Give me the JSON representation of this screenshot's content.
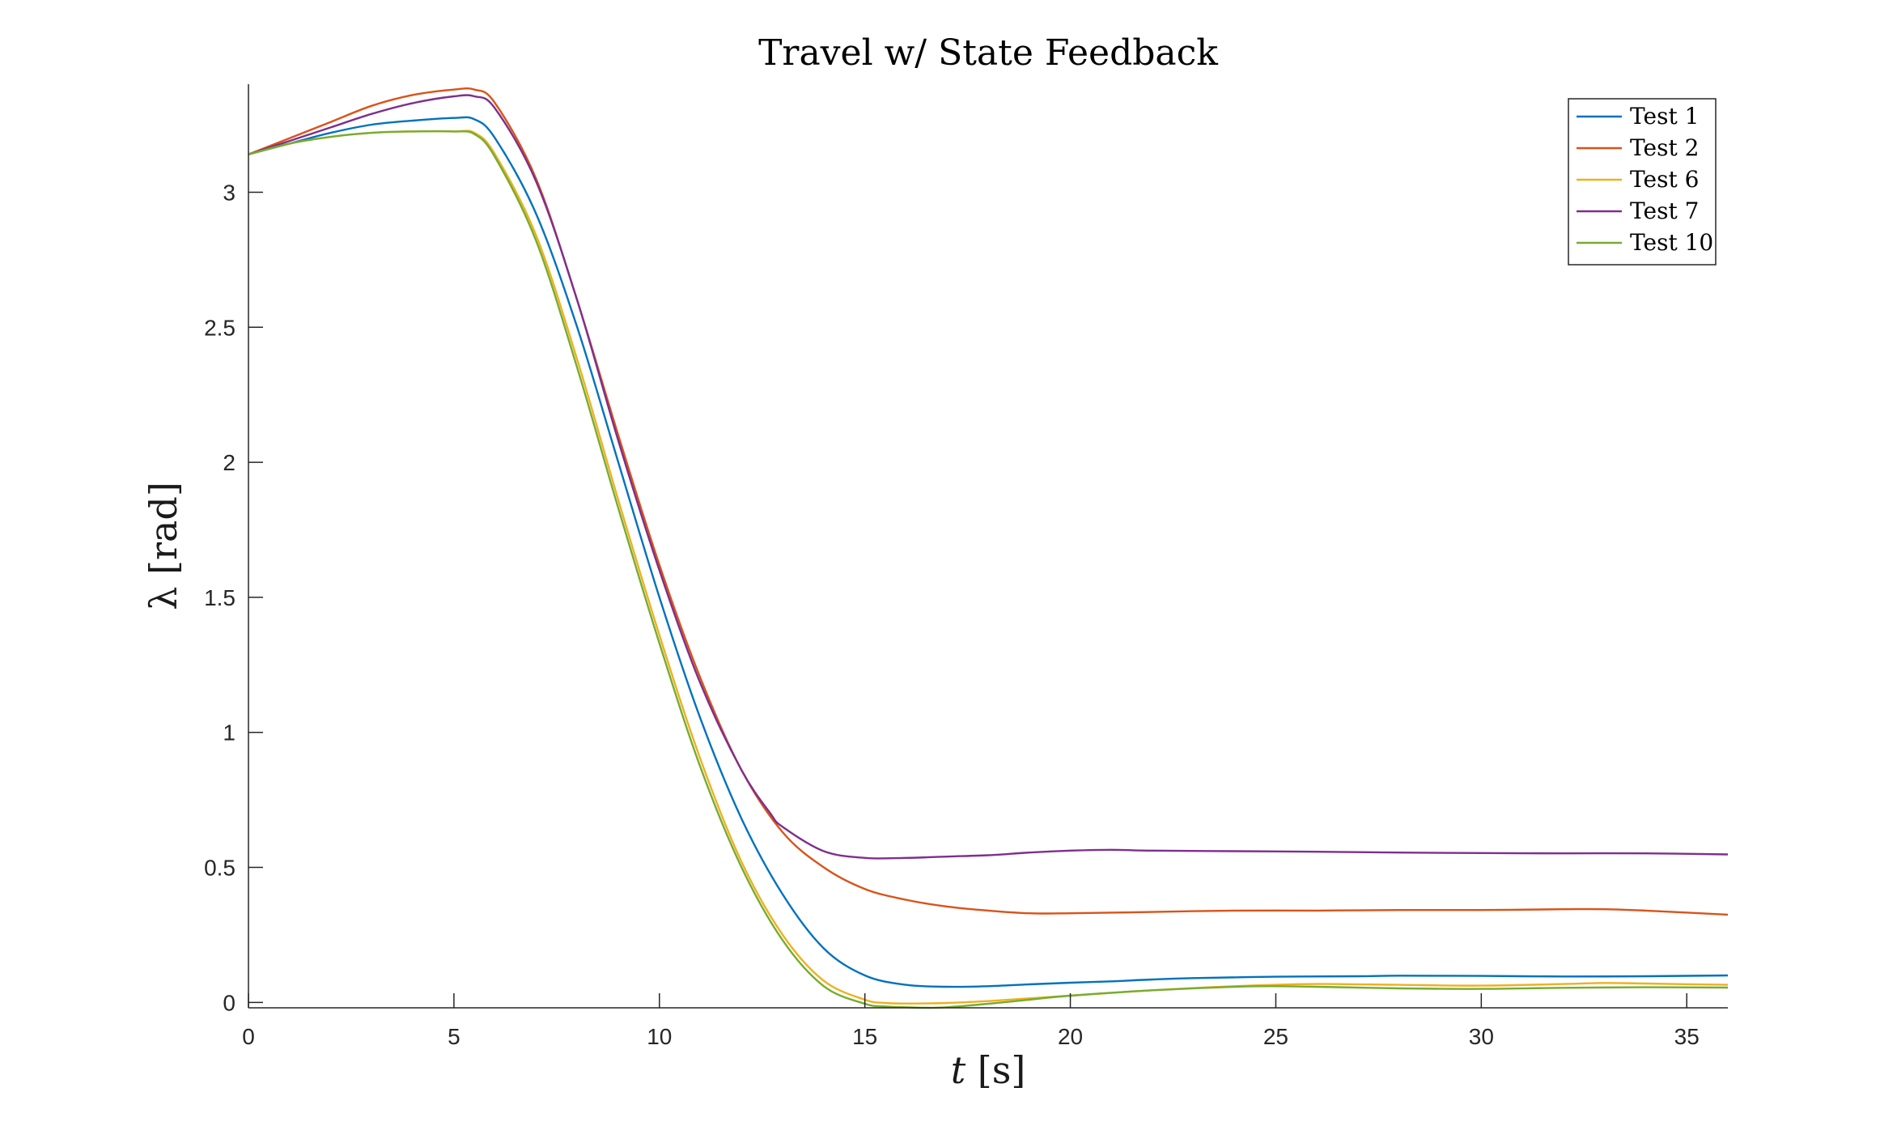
{
  "chart_data": {
    "type": "line",
    "title": "Travel w/ State Feedback",
    "xlabel": "t [s]",
    "ylabel": "λ [rad]",
    "xlim": [
      0,
      36
    ],
    "ylim": [
      -0.02,
      3.4
    ],
    "xticks": [
      0,
      5,
      10,
      15,
      20,
      25,
      30,
      35
    ],
    "yticks": [
      0,
      0.5,
      1,
      1.5,
      2,
      2.5,
      3
    ],
    "grid": false,
    "legend_position": "top-right",
    "series": [
      {
        "name": "Test 1",
        "color": "#0072BD",
        "x": [
          0,
          1,
          2,
          3,
          4,
          5,
          5.5,
          6,
          7,
          8,
          9,
          10,
          11,
          12,
          13,
          14,
          15,
          16,
          17,
          18,
          19,
          20,
          21,
          22,
          23,
          25,
          27,
          28,
          30,
          32,
          34,
          36
        ],
        "y": [
          3.14,
          3.18,
          3.22,
          3.25,
          3.265,
          3.275,
          3.27,
          3.2,
          2.92,
          2.5,
          2.0,
          1.5,
          1.05,
          0.68,
          0.4,
          0.2,
          0.1,
          0.065,
          0.058,
          0.06,
          0.067,
          0.073,
          0.078,
          0.085,
          0.09,
          0.095,
          0.097,
          0.099,
          0.098,
          0.096,
          0.097,
          0.1
        ]
      },
      {
        "name": "Test 2",
        "color": "#D95319",
        "x": [
          0,
          1,
          2,
          3,
          4,
          5,
          5.5,
          6,
          7,
          8,
          9,
          10,
          11,
          12,
          13,
          14,
          15,
          16,
          17,
          18,
          19,
          20,
          22,
          24,
          26,
          28,
          30,
          32,
          33,
          34,
          36
        ],
        "y": [
          3.14,
          3.2,
          3.26,
          3.32,
          3.36,
          3.38,
          3.38,
          3.33,
          3.05,
          2.6,
          2.1,
          1.62,
          1.2,
          0.86,
          0.63,
          0.5,
          0.42,
          0.38,
          0.355,
          0.34,
          0.33,
          0.33,
          0.335,
          0.34,
          0.34,
          0.342,
          0.342,
          0.345,
          0.345,
          0.34,
          0.325
        ]
      },
      {
        "name": "Test 6",
        "color": "#EDB120",
        "x": [
          0,
          1,
          2,
          3,
          4,
          5,
          5.5,
          6,
          7,
          8,
          9,
          10,
          11,
          12,
          13,
          14,
          15,
          15.5,
          16,
          17,
          18,
          19,
          20,
          22,
          24,
          26,
          28,
          30,
          32,
          33,
          34,
          36
        ],
        "y": [
          3.14,
          3.18,
          3.205,
          3.22,
          3.225,
          3.225,
          3.22,
          3.14,
          2.84,
          2.38,
          1.86,
          1.36,
          0.9,
          0.52,
          0.25,
          0.08,
          0.01,
          -0.002,
          -0.004,
          -0.002,
          0.005,
          0.015,
          0.025,
          0.045,
          0.06,
          0.068,
          0.065,
          0.062,
          0.068,
          0.072,
          0.07,
          0.065
        ]
      },
      {
        "name": "Test 7",
        "color": "#7E2F8E",
        "x": [
          0,
          1,
          2,
          3,
          4,
          5,
          5.5,
          6,
          7,
          8,
          9,
          10,
          11,
          12,
          12.7,
          13,
          14,
          15,
          16,
          17,
          18,
          19,
          20,
          21,
          22,
          24,
          26,
          28,
          30,
          32,
          34,
          36
        ],
        "y": [
          3.14,
          3.19,
          3.24,
          3.29,
          3.33,
          3.355,
          3.355,
          3.31,
          3.04,
          2.6,
          2.08,
          1.6,
          1.18,
          0.86,
          0.7,
          0.65,
          0.56,
          0.535,
          0.535,
          0.54,
          0.545,
          0.555,
          0.562,
          0.565,
          0.562,
          0.56,
          0.558,
          0.555,
          0.553,
          0.552,
          0.552,
          0.548
        ]
      },
      {
        "name": "Test 10",
        "color": "#77AC30",
        "x": [
          0,
          1,
          2,
          3,
          4,
          5,
          5.5,
          6,
          7,
          8,
          9,
          10,
          11,
          12,
          13,
          14,
          15,
          15.5,
          16,
          16.5,
          17,
          18,
          19,
          20,
          22,
          24,
          25,
          26,
          28,
          30,
          32,
          34,
          36
        ],
        "y": [
          3.14,
          3.18,
          3.205,
          3.22,
          3.225,
          3.225,
          3.215,
          3.13,
          2.82,
          2.35,
          1.83,
          1.33,
          0.87,
          0.5,
          0.23,
          0.06,
          -0.005,
          -0.015,
          -0.018,
          -0.02,
          -0.018,
          -0.005,
          0.01,
          0.025,
          0.045,
          0.058,
          0.06,
          0.058,
          0.052,
          0.05,
          0.054,
          0.056,
          0.055
        ]
      }
    ]
  }
}
